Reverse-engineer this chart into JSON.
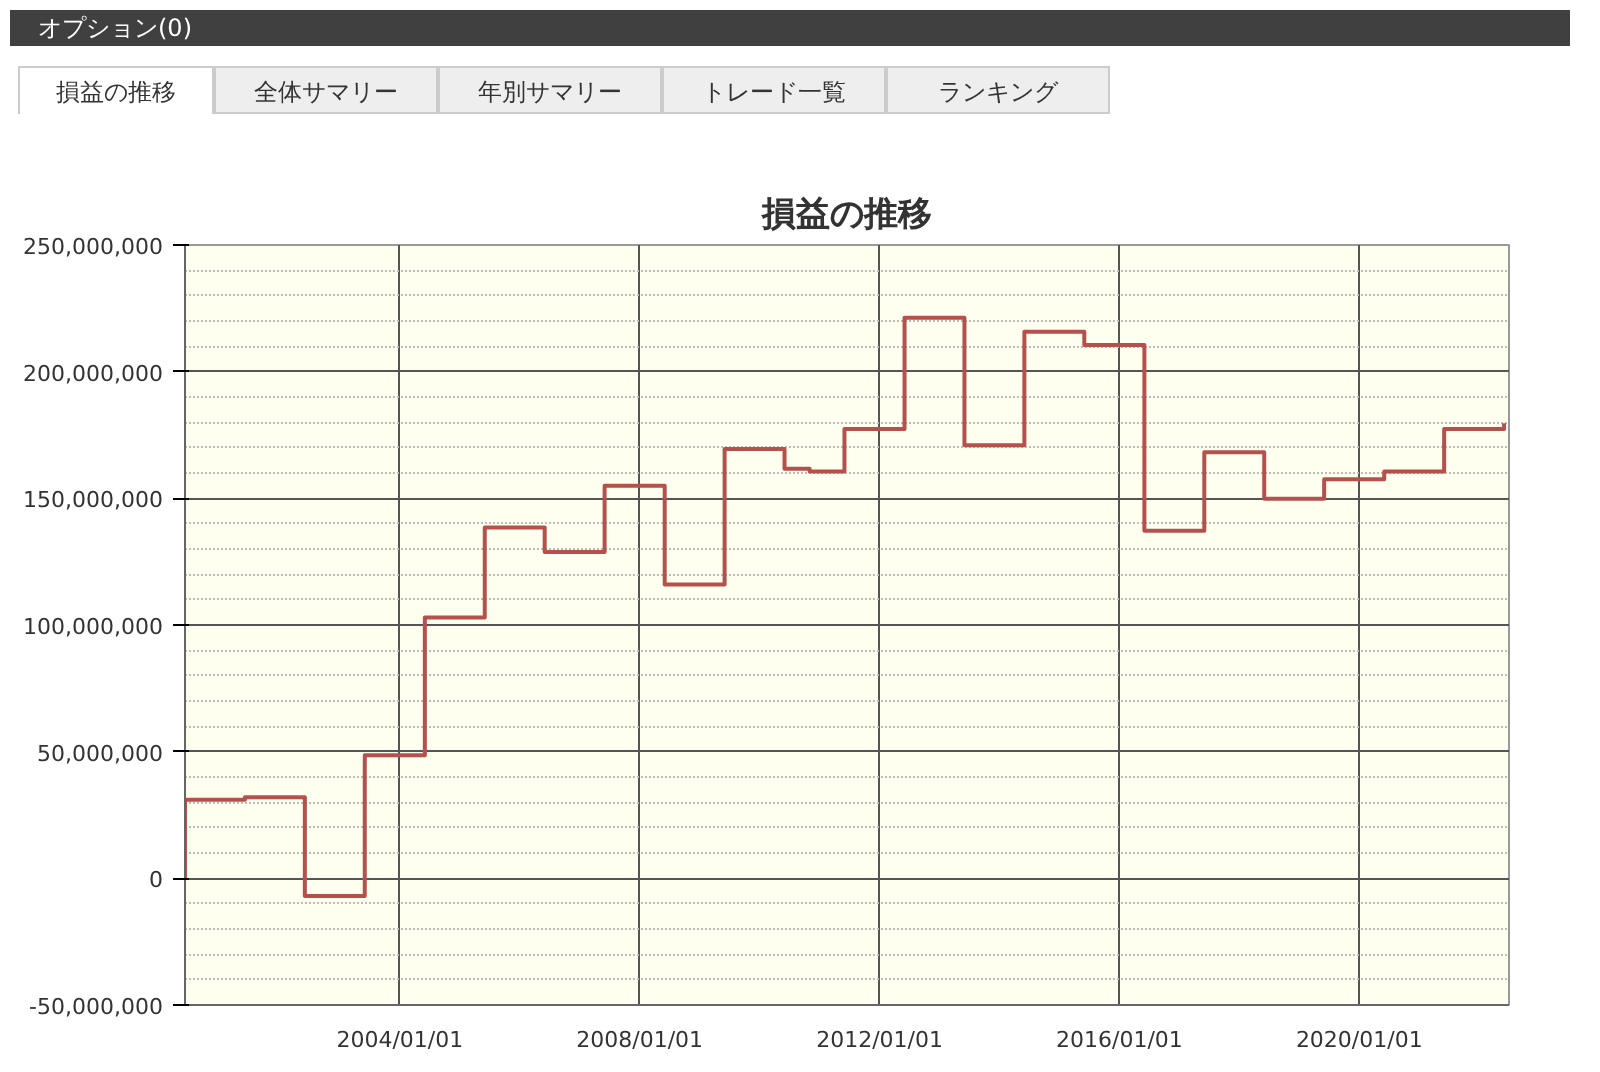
{
  "chart_data": {
    "type": "step",
    "title": "損益の推移",
    "annotations": [
      "オプション(0)",
      "損益の推移",
      "全体サマリー",
      "年別サマリー",
      "トレード一覧",
      "ランキング"
    ],
    "x": [
      "2000-06",
      "2000-06",
      "2001-06",
      "2002-06",
      "2003-06",
      "2004-06",
      "2005-06",
      "2006-06",
      "2007-06",
      "2008-06",
      "2009-06",
      "2010-06",
      "2010-11",
      "2011-06",
      "2012-06",
      "2013-06",
      "2014-06",
      "2015-06",
      "2016-06",
      "2017-06",
      "2018-06",
      "2019-06",
      "2020-06",
      "2021-06",
      "2022-06"
    ],
    "series": [
      {
        "color": "#b5504c",
        "values": [
          0,
          31000000,
          32000000,
          -7000000,
          48600000,
          103000000,
          138500000,
          128800000,
          155000000,
          116000000,
          169500000,
          161700000,
          160600000,
          177400000,
          221300000,
          171000000,
          215800000,
          210500000,
          137200000,
          168200000,
          149800000,
          157500000,
          160600000,
          177400000,
          179600000
        ]
      }
    ],
    "xlim": [
      "2000-06",
      "2022-07"
    ],
    "xticks": [
      {
        "value": "2004-01-01",
        "label": "2004/01/01"
      },
      {
        "value": "2008-01-01",
        "label": "2008/01/01"
      },
      {
        "value": "2012-01-01",
        "label": "2012/01/01"
      },
      {
        "value": "2016-01-01",
        "label": "2016/01/01"
      },
      {
        "value": "2020-01-01",
        "label": "2020/01/01"
      }
    ],
    "ylim": [
      -50000000,
      250000000
    ],
    "yticks": [
      {
        "value": -50000000,
        "label": "-50,000,000"
      },
      {
        "value": 0,
        "label": "0"
      },
      {
        "value": 50000000,
        "label": "50,000,000"
      },
      {
        "value": 100000000,
        "label": "100,000,000"
      },
      {
        "value": 150000000,
        "label": "150,000,000"
      },
      {
        "value": 200000000,
        "label": "200,000,000"
      },
      {
        "value": 250000000,
        "label": "250,000,000"
      }
    ],
    "grid": true,
    "marker": "none",
    "line_style": "solid"
  }
}
